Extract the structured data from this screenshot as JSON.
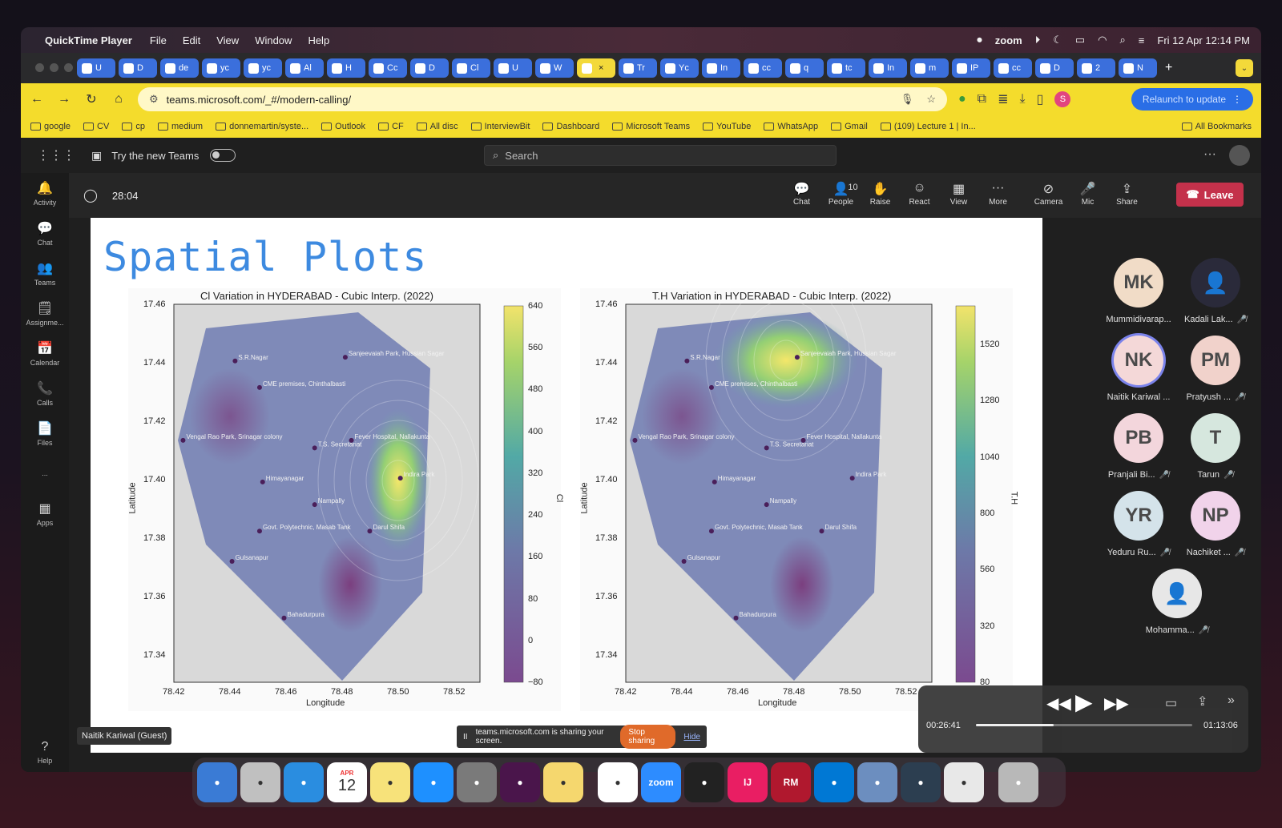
{
  "menubar": {
    "app": "QuickTime Player",
    "items": [
      "File",
      "Edit",
      "View",
      "Window",
      "Help"
    ],
    "zoom": "zoom",
    "datetime": "Fri 12 Apr  12:14 PM"
  },
  "browser": {
    "tabs": [
      "U",
      "D",
      "de",
      "yc",
      "yc",
      "Al",
      "H",
      "Cc",
      "D",
      "Cl",
      "U",
      "W",
      "",
      "Tr",
      "Yc",
      "In",
      "cc",
      "q",
      "tc",
      "In",
      "m",
      "IP",
      "cc",
      "D",
      "2",
      "N"
    ],
    "active_tab_index": 12,
    "url": "teams.microsoft.com/_#/modern-calling/",
    "relaunch": "Relaunch to update",
    "profile_initial": "S",
    "bookmarks": [
      "google",
      "CV",
      "cp",
      "medium",
      "donnemartin/syste...",
      "Outlook",
      "CF",
      "All disc",
      "InterviewBit",
      "Dashboard",
      "Microsoft Teams",
      "YouTube",
      "WhatsApp",
      "Gmail",
      "(109) Lecture 1 | In..."
    ],
    "all_bookmarks": "All Bookmarks"
  },
  "teams": {
    "try_new": "Try the new Teams",
    "search_placeholder": "Search",
    "rail": [
      "Activity",
      "Chat",
      "Teams",
      "Assignme...",
      "Calendar",
      "Calls",
      "Files",
      "...",
      "Apps"
    ],
    "help": "Help",
    "timer": "28:04",
    "controls": [
      {
        "label": "Chat",
        "icon": "chat-icon"
      },
      {
        "label": "People",
        "icon": "people-icon",
        "count": "10"
      },
      {
        "label": "Raise",
        "icon": "hand-icon"
      },
      {
        "label": "React",
        "icon": "smile-icon"
      },
      {
        "label": "View",
        "icon": "grid-icon"
      },
      {
        "label": "More",
        "icon": "more-icon"
      },
      {
        "label": "Camera",
        "icon": "camera-off-icon"
      },
      {
        "label": "Mic",
        "icon": "mic-off-icon"
      },
      {
        "label": "Share",
        "icon": "share-icon"
      }
    ],
    "leave": "Leave",
    "participants": [
      {
        "initials": "MK",
        "name": "Mummidivarap...",
        "color": "#f1dcc7",
        "muted": false
      },
      {
        "initials": "",
        "name": "Kadali Lak...",
        "color": "#2a2a3a",
        "muted": true
      },
      {
        "initials": "NK",
        "name": "Naitik Kariwal ...",
        "color": "#f4d8d8",
        "muted": false
      },
      {
        "initials": "PM",
        "name": "Pratyush ...",
        "color": "#f1d2cb",
        "muted": true
      },
      {
        "initials": "PB",
        "name": "Pranjali Bi...",
        "color": "#f3d6dc",
        "muted": true
      },
      {
        "initials": "T",
        "name": "Tarun",
        "color": "#d6e7de",
        "muted": true
      },
      {
        "initials": "YR",
        "name": "Yeduru Ru...",
        "color": "#d4e3ea",
        "muted": true
      },
      {
        "initials": "NP",
        "name": "Nachiket ...",
        "color": "#f1d3ea",
        "muted": true
      },
      {
        "initials": "",
        "name": "Mohamma...",
        "color": "#e7e7e7",
        "muted": true
      }
    ],
    "guest_label": "Naitik Kariwal (Guest)",
    "share_notice": "teams.microsoft.com is sharing your screen.",
    "stop_sharing": "Stop sharing",
    "hide": "Hide"
  },
  "slide": {
    "title": "Spatial Plots",
    "plots": [
      {
        "title": "Cl Variation in HYDERABAD - Cubic Interp. (2022)",
        "cbar_label": "Cl",
        "cbar_ticks": [
          "640",
          "560",
          "480",
          "400",
          "320",
          "240",
          "160",
          "80",
          "0",
          "−80"
        ],
        "hotspot": "Indira Park"
      },
      {
        "title": "T.H Variation in HYDERABAD - Cubic Interp. (2022)",
        "cbar_label": "T.H",
        "cbar_ticks": [
          "1520",
          "1280",
          "1040",
          "800",
          "560",
          "320",
          "80"
        ],
        "hotspot": "Sanjeevaiah Park, Hussian Sagar"
      }
    ],
    "xlabel": "Longitude",
    "ylabel": "Latitude",
    "xticks": [
      "78.42",
      "78.44",
      "78.46",
      "78.48",
      "78.50",
      "78.52"
    ],
    "yticks": [
      "17.46",
      "17.44",
      "17.42",
      "17.40",
      "17.38",
      "17.36",
      "17.34"
    ],
    "places": [
      "S.R.Nagar",
      "CME premises, Chinthalbasti",
      "Sanjeevaiah Park, Hussian Sagar",
      "Vengal Rao Park, Srinagar colony",
      "T.S. Secretariat",
      "Fever Hospital, Nallakunta",
      "Himayanagar",
      "Indira Park",
      "Nampally",
      "Govt. Polytechnic, Masab Tank",
      "Darul Shifa",
      "Gulsanapur",
      "Bahadurpura"
    ]
  },
  "quicktime": {
    "elapsed": "00:26:41",
    "total": "01:13:06",
    "progress": 0.36
  },
  "dock": [
    "Finder",
    "Launchpad",
    "Safari",
    "Calendar",
    "Notes",
    "App Store",
    "Settings",
    "Slack",
    "Stickies",
    "Chrome",
    "zoom",
    "Terminal",
    "IJ",
    "RM",
    "VS Code",
    "Preview",
    "QuickTime",
    "Docs",
    "Trash"
  ],
  "dock_calendar": {
    "month": "APR",
    "day": "12"
  }
}
